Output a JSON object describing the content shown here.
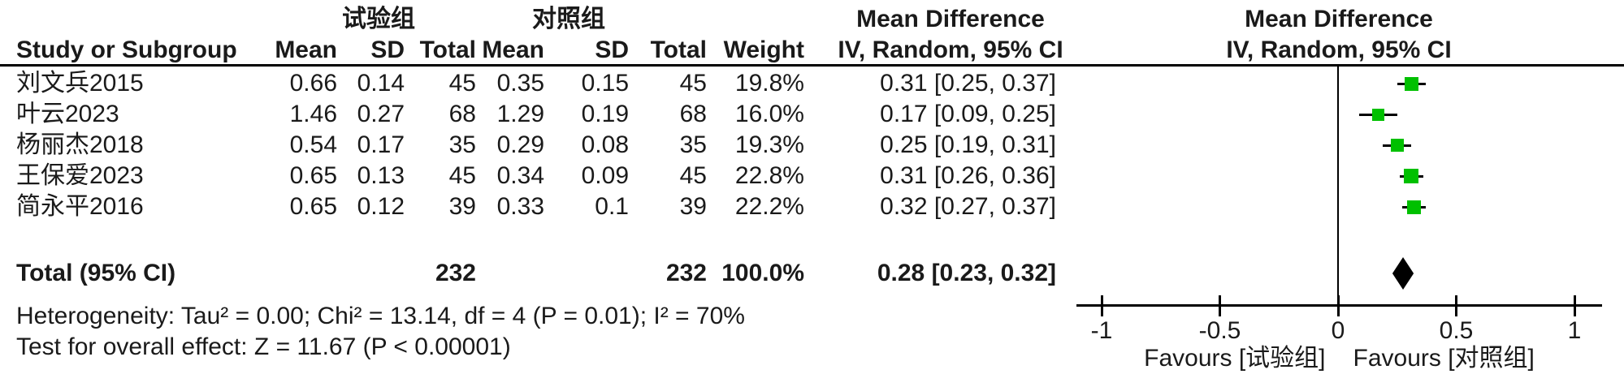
{
  "colors": {
    "marker_green": "#00c000",
    "line_black": "#000000",
    "text": "#1a1a1a"
  },
  "header": {
    "group_experimental": "试验组",
    "group_control": "对照组",
    "col_study": "Study or Subgroup",
    "col_mean": "Mean",
    "col_sd": "SD",
    "col_total": "Total",
    "col_weight": "Weight",
    "md_label": "Mean Difference",
    "iv_label": "IV, Random, 95% CI"
  },
  "rows": [
    {
      "study": "刘文兵2015",
      "mean1": "0.66",
      "sd1": "0.14",
      "total1": "45",
      "mean2": "0.35",
      "sd2": "0.15",
      "total2": "45",
      "weight": "19.8%",
      "ci_text": "0.31 [0.25, 0.37]"
    },
    {
      "study": "叶云2023",
      "mean1": "1.46",
      "sd1": "0.27",
      "total1": "68",
      "mean2": "1.29",
      "sd2": "0.19",
      "total2": "68",
      "weight": "16.0%",
      "ci_text": "0.17 [0.09, 0.25]"
    },
    {
      "study": "杨丽杰2018",
      "mean1": "0.54",
      "sd1": "0.17",
      "total1": "35",
      "mean2": "0.29",
      "sd2": "0.08",
      "total2": "35",
      "weight": "19.3%",
      "ci_text": "0.25 [0.19, 0.31]"
    },
    {
      "study": "王保爱2023",
      "mean1": "0.65",
      "sd1": "0.13",
      "total1": "45",
      "mean2": "0.34",
      "sd2": "0.09",
      "total2": "45",
      "weight": "22.8%",
      "ci_text": "0.31 [0.26, 0.36]"
    },
    {
      "study": "简永平2016",
      "mean1": "0.65",
      "sd1": "0.12",
      "total1": "39",
      "mean2": "0.33",
      "sd2": "0.1",
      "total2": "39",
      "weight": "22.2%",
      "ci_text": "0.32 [0.27, 0.37]"
    }
  ],
  "total_row": {
    "label": "Total (95% CI)",
    "total1": "232",
    "total2": "232",
    "weight": "100.0%",
    "ci_text": "0.28 [0.23, 0.32]"
  },
  "footer": {
    "heterogeneity": "Heterogeneity: Tau² = 0.00; Chi² = 13.14, df = 4 (P = 0.01); I² = 70%",
    "overall_effect": "Test for overall effect: Z = 11.67 (P < 0.00001)"
  },
  "axis": {
    "tick_labels": [
      "-1",
      "-0.5",
      "0",
      "0.5",
      "1"
    ],
    "favours_left": "Favours [试验组]",
    "favours_right": "Favours [对照组]"
  },
  "chart_data": {
    "type": "scatter",
    "subtype": "forest-plot-mean-difference",
    "title": "Mean Difference",
    "effect_model": "IV, Random, 95% CI",
    "xlim": [
      -1,
      1
    ],
    "x_ticks": [
      -1,
      -0.5,
      0,
      0.5,
      1
    ],
    "favours_left": "Favours [试验组]",
    "favours_right": "Favours [对照组]",
    "studies": [
      {
        "name": "刘文兵2015",
        "estimate": 0.31,
        "ci_low": 0.25,
        "ci_high": 0.37,
        "weight_pct": 19.8
      },
      {
        "name": "叶云2023",
        "estimate": 0.17,
        "ci_low": 0.09,
        "ci_high": 0.25,
        "weight_pct": 16.0
      },
      {
        "name": "杨丽杰2018",
        "estimate": 0.25,
        "ci_low": 0.19,
        "ci_high": 0.31,
        "weight_pct": 19.3
      },
      {
        "name": "王保爱2023",
        "estimate": 0.31,
        "ci_low": 0.26,
        "ci_high": 0.36,
        "weight_pct": 22.8
      },
      {
        "name": "简永平2016",
        "estimate": 0.32,
        "ci_low": 0.27,
        "ci_high": 0.37,
        "weight_pct": 22.2
      }
    ],
    "total": {
      "estimate": 0.28,
      "ci_low": 0.23,
      "ci_high": 0.32,
      "weight_pct": 100.0,
      "heterogeneity": {
        "tau2": 0.0,
        "chi2": 13.14,
        "df": 4,
        "p": 0.01,
        "i2_pct": 70
      },
      "overall_effect": {
        "z": 11.67,
        "p": "< 0.00001"
      }
    }
  }
}
